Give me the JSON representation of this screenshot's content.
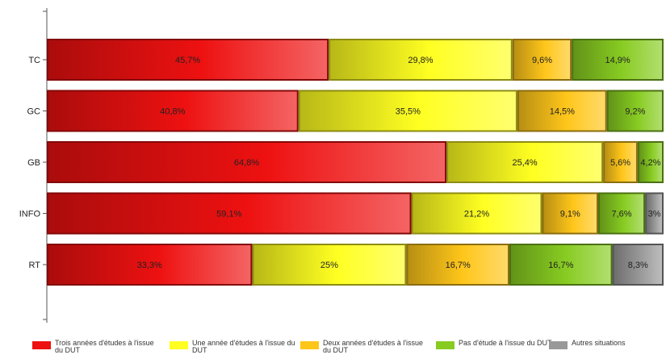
{
  "chart_data": {
    "type": "bar",
    "orientation": "horizontal",
    "stacked": true,
    "categories": [
      "TC",
      "GC",
      "GB",
      "INFO",
      "RT"
    ],
    "xlim": [
      0,
      100
    ],
    "series": [
      {
        "name": "Trois années d'études à l'issue du DUT",
        "color": "#ee1111",
        "values": [
          45.7,
          40.8,
          64.8,
          59.1,
          33.3
        ],
        "labels": [
          "45,7%",
          "40,8%",
          "64,8%",
          "59,1%",
          "33,3%"
        ]
      },
      {
        "name": "Une année d'études à l'issue du DUT",
        "color": "#ffff22",
        "values": [
          29.8,
          35.5,
          25.4,
          21.2,
          25
        ],
        "labels": [
          "29,8%",
          "35,5%",
          "25,4%",
          "21,2%",
          "25%"
        ]
      },
      {
        "name": "Deux années d'études à l'issue du DUT",
        "color": "#ffc61a",
        "values": [
          9.6,
          14.5,
          5.6,
          9.1,
          16.7
        ],
        "labels": [
          "9,6%",
          "14,5%",
          "5,6%",
          "9,1%",
          "16,7%"
        ]
      },
      {
        "name": "Pas d'étude à l'issue du DUT",
        "color": "#88cc22",
        "values": [
          14.9,
          9.2,
          4.2,
          7.6,
          16.7
        ],
        "labels": [
          "14,9%",
          "9,2%",
          "4,2%",
          "7,6%",
          "16,7%"
        ]
      },
      {
        "name": "Autres situations",
        "color": "#999999",
        "values": [
          0,
          0,
          0,
          3,
          8.3
        ],
        "labels": [
          "",
          "",
          "",
          "3%",
          "8,3%"
        ]
      }
    ],
    "legend": "bottom"
  }
}
